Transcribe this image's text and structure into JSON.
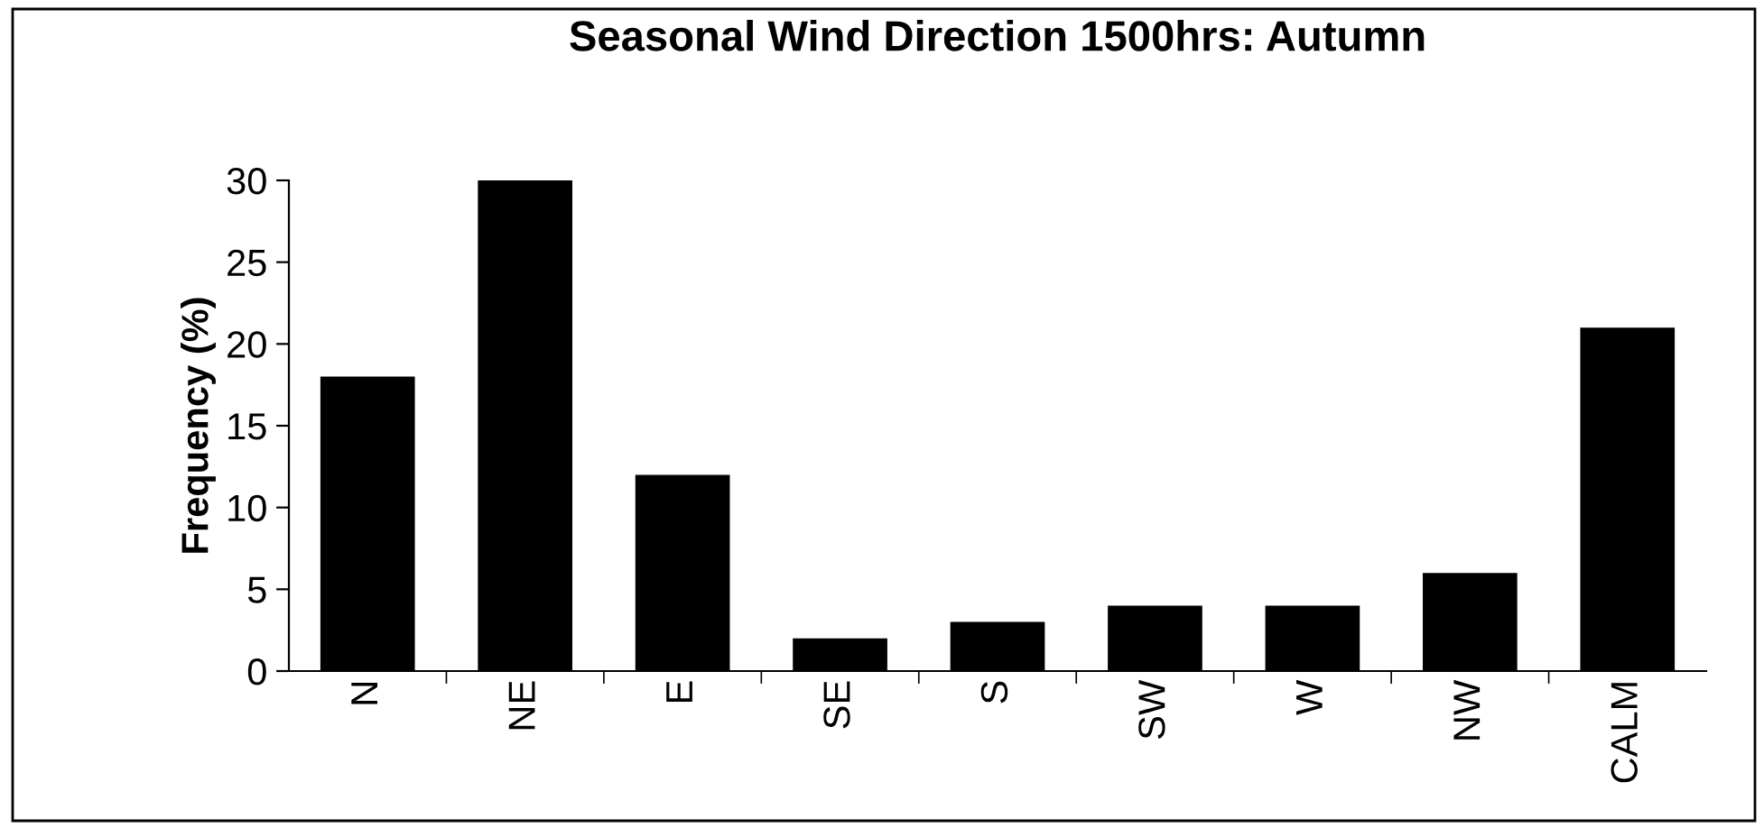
{
  "chart_data": {
    "type": "bar",
    "title": "Seasonal Wind Direction 1500hrs: Autumn",
    "ylabel": "Frequency (%)",
    "categories": [
      "N",
      "NE",
      "E",
      "SE",
      "S",
      "SW",
      "W",
      "NW",
      "CALM"
    ],
    "values": [
      18,
      30,
      12,
      2,
      3,
      4,
      4,
      6,
      21
    ],
    "color": "#000000",
    "ylim": [
      0,
      30
    ],
    "yticks": [
      0,
      5,
      10,
      15,
      20,
      25,
      30
    ],
    "grid": false,
    "legend": false
  }
}
